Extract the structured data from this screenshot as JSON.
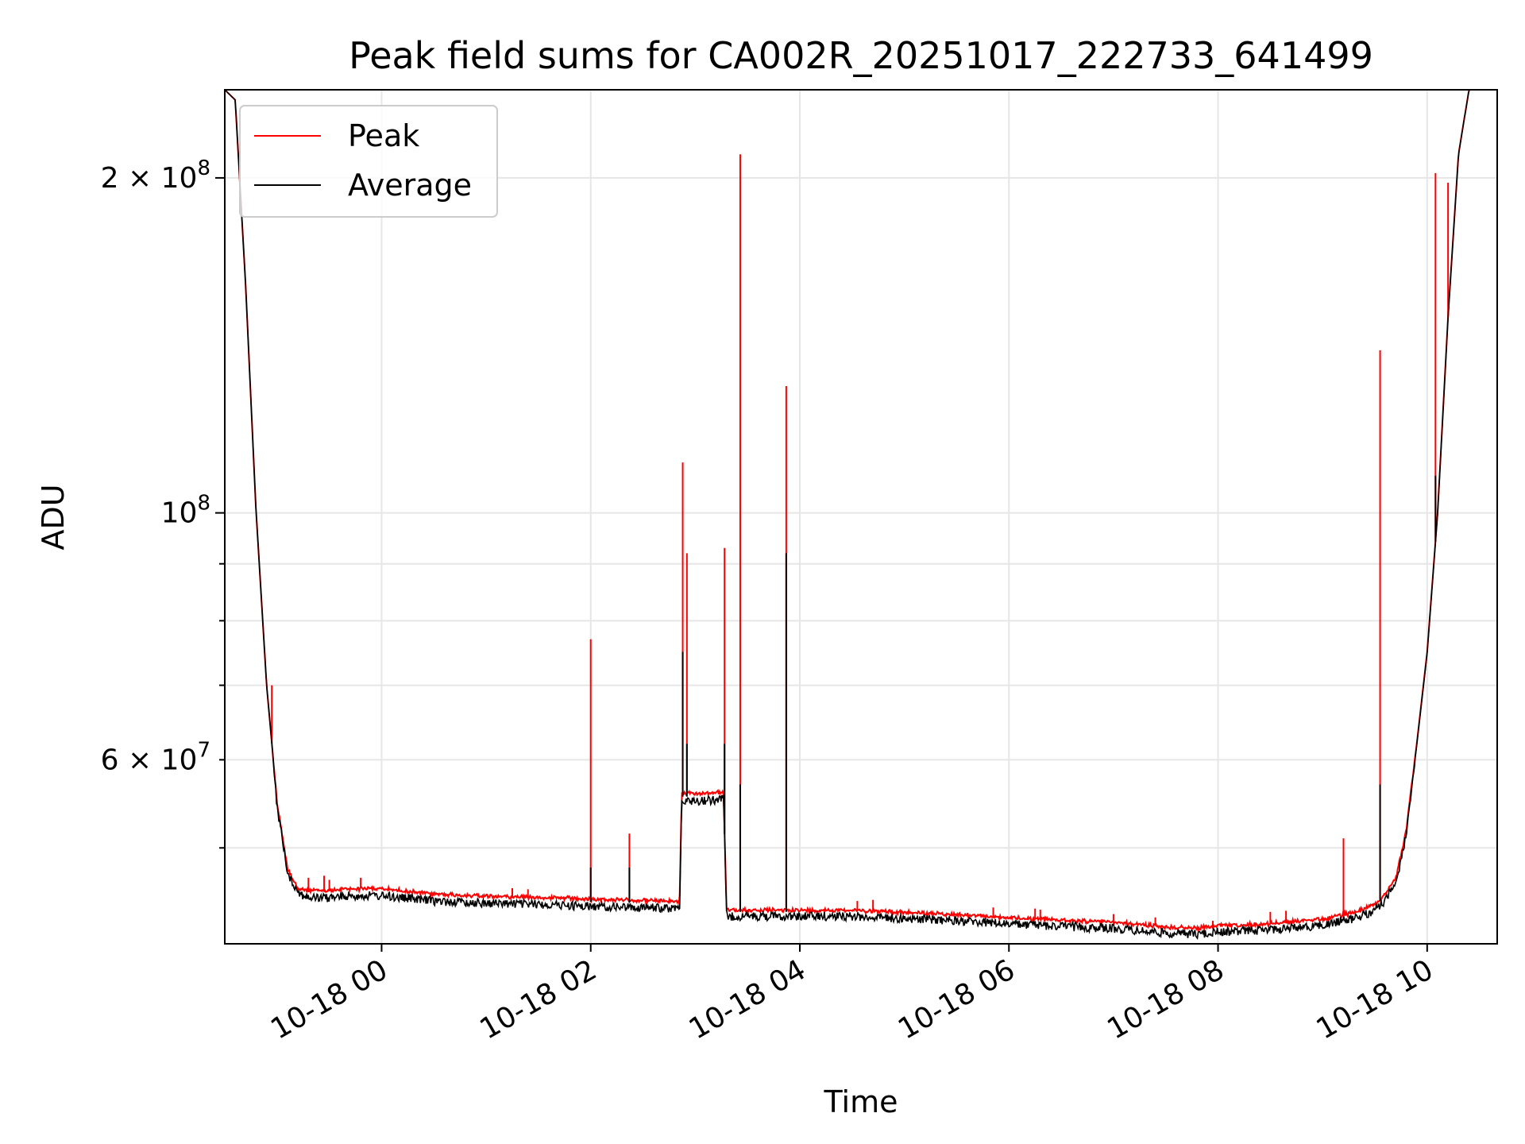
{
  "chart_data": {
    "type": "line",
    "title": "Peak field sums for CA002R_20251017_222733_641499",
    "xlabel": "Time",
    "ylabel": "ADU",
    "yscale": "log",
    "grid": true,
    "legend_position": "top-left",
    "x_unit": "hours after 2025-10-18 00:00",
    "xlim": [
      -1.5,
      10.67
    ],
    "ylim": [
      41000000,
      240000000
    ],
    "x_ticks": [
      {
        "value": 0,
        "label": "10-18 00"
      },
      {
        "value": 2,
        "label": "10-18 02"
      },
      {
        "value": 4,
        "label": "10-18 04"
      },
      {
        "value": 6,
        "label": "10-18 06"
      },
      {
        "value": 8,
        "label": "10-18 08"
      },
      {
        "value": 10,
        "label": "10-18 10"
      }
    ],
    "y_major_ticks": [
      {
        "value": 100000000,
        "base": "10",
        "exp": "8",
        "coef": ""
      },
      {
        "value": 200000000,
        "base": "10",
        "exp": "8",
        "coef": "2"
      }
    ],
    "y_minor_ticks": [
      {
        "value": 60000000,
        "base": "10",
        "exp": "7",
        "coef": "6"
      },
      {
        "value": 50000000
      },
      {
        "value": 70000000
      },
      {
        "value": 80000000
      },
      {
        "value": 90000000
      }
    ],
    "series": [
      {
        "name": "Peak",
        "color": "#ff0000",
        "baseline_x": [
          -1.5,
          -1.4,
          -1.3,
          -1.2,
          -1.1,
          -1.0,
          -0.9,
          -0.8,
          -0.7,
          -0.6,
          -0.5,
          -0.3,
          0.0,
          0.5,
          1.0,
          1.5,
          2.0,
          2.5,
          2.85,
          2.87,
          3.0,
          3.27,
          3.3,
          3.5,
          4.0,
          4.5,
          5.0,
          5.5,
          6.0,
          6.5,
          7.0,
          7.5,
          7.8,
          8.0,
          8.5,
          9.0,
          9.3,
          9.5,
          9.6,
          9.7,
          9.8,
          9.9,
          10.0,
          10.1,
          10.2,
          10.3,
          10.4,
          10.5,
          10.67
        ],
        "baseline_y": [
          240000000,
          235000000,
          160000000,
          100000000,
          70000000,
          55000000,
          48000000,
          46000000,
          45800000,
          45800000,
          45800000,
          46000000,
          46000000,
          45500000,
          45300000,
          45200000,
          45000000,
          44900000,
          44800000,
          56000000,
          56000000,
          56200000,
          44000000,
          44000000,
          44000000,
          44000000,
          43800000,
          43600000,
          43300000,
          43100000,
          42900000,
          42500000,
          42400000,
          42600000,
          42800000,
          43200000,
          43800000,
          44500000,
          45500000,
          47000000,
          52000000,
          62000000,
          75000000,
          100000000,
          150000000,
          210000000,
          240000000,
          240000000,
          240000000
        ],
        "spikes": [
          {
            "x": -1.05,
            "y": 70000000
          },
          {
            "x": -0.7,
            "y": 47000000
          },
          {
            "x": -0.55,
            "y": 47200000
          },
          {
            "x": -0.5,
            "y": 46800000
          },
          {
            "x": -0.2,
            "y": 47000000
          },
          {
            "x": 1.25,
            "y": 46000000
          },
          {
            "x": 1.4,
            "y": 45900000
          },
          {
            "x": 2.0,
            "y": 77000000
          },
          {
            "x": 2.37,
            "y": 51500000
          },
          {
            "x": 2.88,
            "y": 111000000
          },
          {
            "x": 2.92,
            "y": 92000000
          },
          {
            "x": 3.28,
            "y": 93000000
          },
          {
            "x": 3.43,
            "y": 210000000
          },
          {
            "x": 3.87,
            "y": 130000000
          },
          {
            "x": 4.55,
            "y": 44800000
          },
          {
            "x": 4.7,
            "y": 44900000
          },
          {
            "x": 5.85,
            "y": 44200000
          },
          {
            "x": 6.25,
            "y": 44100000
          },
          {
            "x": 6.3,
            "y": 44000000
          },
          {
            "x": 7.0,
            "y": 43600000
          },
          {
            "x": 7.4,
            "y": 43300000
          },
          {
            "x": 7.95,
            "y": 43000000
          },
          {
            "x": 8.5,
            "y": 43800000
          },
          {
            "x": 8.65,
            "y": 43900000
          },
          {
            "x": 9.2,
            "y": 51000000
          },
          {
            "x": 9.55,
            "y": 140000000
          },
          {
            "x": 10.08,
            "y": 202000000
          },
          {
            "x": 10.2,
            "y": 198000000
          }
        ]
      },
      {
        "name": "Average",
        "color": "#000000",
        "baseline_x": [
          -1.5,
          -1.4,
          -1.3,
          -1.2,
          -1.1,
          -1.0,
          -0.9,
          -0.8,
          -0.7,
          -0.6,
          -0.5,
          -0.3,
          0.0,
          0.5,
          1.0,
          1.5,
          2.0,
          2.5,
          2.85,
          2.87,
          3.0,
          3.27,
          3.3,
          3.5,
          4.0,
          4.5,
          5.0,
          5.5,
          6.0,
          6.5,
          7.0,
          7.5,
          7.8,
          8.0,
          8.5,
          9.0,
          9.3,
          9.5,
          9.6,
          9.7,
          9.8,
          9.9,
          10.0,
          10.1,
          10.2,
          10.3,
          10.4,
          10.5,
          10.67
        ],
        "baseline_y": [
          240000000,
          235000000,
          160000000,
          100000000,
          70000000,
          55000000,
          48000000,
          46000000,
          45500000,
          45500000,
          45500000,
          45700000,
          45700000,
          45200000,
          45000000,
          44900000,
          44700000,
          44600000,
          44500000,
          55600000,
          55600000,
          55800000,
          43800000,
          43800000,
          43800000,
          43800000,
          43600000,
          43400000,
          43100000,
          42900000,
          42700000,
          42300000,
          42200000,
          42400000,
          42600000,
          43000000,
          43600000,
          44300000,
          45300000,
          46800000,
          51800000,
          61800000,
          74800000,
          99800000,
          149800000,
          209800000,
          240000000,
          240000000,
          240000000
        ],
        "spikes": [
          {
            "x": 2.0,
            "y": 48000000
          },
          {
            "x": 2.37,
            "y": 48000000
          },
          {
            "x": 2.88,
            "y": 75000000
          },
          {
            "x": 2.92,
            "y": 62000000
          },
          {
            "x": 3.28,
            "y": 62000000
          },
          {
            "x": 3.43,
            "y": 57000000
          },
          {
            "x": 3.87,
            "y": 92000000
          },
          {
            "x": 9.55,
            "y": 57000000
          },
          {
            "x": 10.08,
            "y": 108000000
          }
        ]
      }
    ]
  }
}
